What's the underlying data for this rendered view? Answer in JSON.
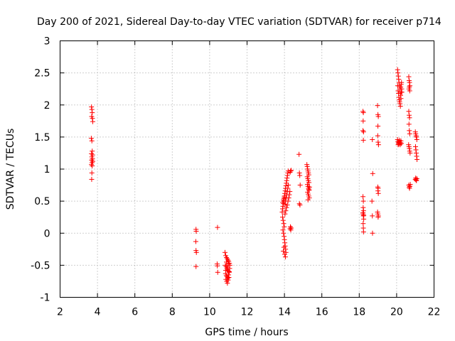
{
  "chart_data": {
    "type": "scatter",
    "title": "Day 200 of 2021, Sidereal Day-to-day VTEC variation (SDTVAR) for receiver p714",
    "xlabel": "GPS time / hours",
    "ylabel": "SDTVAR / TECUs",
    "xlim": [
      2,
      22
    ],
    "ylim": [
      -1,
      3
    ],
    "xticks": [
      "2",
      "4",
      "6",
      "8",
      "10",
      "12",
      "14",
      "16",
      "18",
      "20",
      "22"
    ],
    "yticks": [
      "-1",
      "-0.5",
      "0",
      "0.5",
      "1",
      "1.5",
      "2",
      "2.5",
      "3"
    ],
    "grid": true,
    "marker": "plus",
    "color": "#ff0000",
    "series": [
      {
        "name": "SDTVAR",
        "points": [
          [
            3.68,
            1.97
          ],
          [
            3.7,
            1.93
          ],
          [
            3.72,
            1.88
          ],
          [
            3.69,
            1.82
          ],
          [
            3.73,
            1.79
          ],
          [
            3.75,
            1.74
          ],
          [
            3.67,
            1.48
          ],
          [
            3.7,
            1.44
          ],
          [
            3.72,
            1.28
          ],
          [
            3.68,
            1.24
          ],
          [
            3.74,
            1.22
          ],
          [
            3.7,
            1.19
          ],
          [
            3.73,
            1.16
          ],
          [
            3.69,
            1.14
          ],
          [
            3.75,
            1.12
          ],
          [
            3.71,
            1.1
          ],
          [
            3.68,
            1.07
          ],
          [
            3.72,
            1.05
          ],
          [
            3.7,
            0.94
          ],
          [
            3.69,
            0.84
          ],
          [
            9.27,
            0.06
          ],
          [
            9.28,
            0.03
          ],
          [
            9.26,
            -0.13
          ],
          [
            9.27,
            -0.27
          ],
          [
            9.29,
            -0.3
          ],
          [
            9.27,
            -0.52
          ],
          [
            10.42,
            0.09
          ],
          [
            10.4,
            -0.48
          ],
          [
            10.41,
            -0.51
          ],
          [
            10.43,
            -0.61
          ],
          [
            10.82,
            -0.3
          ],
          [
            10.86,
            -0.35
          ],
          [
            10.9,
            -0.38
          ],
          [
            10.94,
            -0.4
          ],
          [
            10.98,
            -0.42
          ],
          [
            11.02,
            -0.44
          ],
          [
            11.06,
            -0.47
          ],
          [
            10.84,
            -0.5
          ],
          [
            10.88,
            -0.52
          ],
          [
            10.92,
            -0.55
          ],
          [
            10.96,
            -0.57
          ],
          [
            11.0,
            -0.59
          ],
          [
            11.04,
            -0.61
          ],
          [
            11.08,
            -0.5
          ],
          [
            10.85,
            -0.63
          ],
          [
            10.89,
            -0.66
          ],
          [
            10.93,
            -0.68
          ],
          [
            10.97,
            -0.7
          ],
          [
            11.01,
            -0.65
          ],
          [
            11.05,
            -0.6
          ],
          [
            10.87,
            -0.72
          ],
          [
            10.91,
            -0.75
          ],
          [
            10.95,
            -0.78
          ],
          [
            10.99,
            -0.73
          ],
          [
            11.03,
            -0.69
          ],
          [
            10.9,
            -0.45
          ],
          [
            10.95,
            -0.53
          ],
          [
            11.0,
            -0.48
          ],
          [
            10.86,
            -0.58
          ],
          [
            11.07,
            -0.55
          ],
          [
            13.88,
            0.33
          ],
          [
            13.9,
            0.38
          ],
          [
            13.92,
            0.42
          ],
          [
            13.94,
            0.46
          ],
          [
            13.96,
            0.5
          ],
          [
            13.98,
            0.54
          ],
          [
            14.0,
            0.58
          ],
          [
            14.02,
            0.62
          ],
          [
            14.04,
            0.66
          ],
          [
            14.06,
            0.7
          ],
          [
            14.08,
            0.74
          ],
          [
            14.1,
            0.78
          ],
          [
            14.12,
            0.82
          ],
          [
            14.14,
            0.86
          ],
          [
            14.16,
            0.9
          ],
          [
            14.18,
            0.94
          ],
          [
            14.2,
            0.97
          ],
          [
            13.9,
            0.25
          ],
          [
            13.93,
            0.2
          ],
          [
            13.96,
            0.15
          ],
          [
            13.99,
            0.1
          ],
          [
            13.92,
            0.05
          ],
          [
            13.95,
            0.0
          ],
          [
            13.98,
            -0.05
          ],
          [
            14.0,
            -0.1
          ],
          [
            14.02,
            -0.15
          ],
          [
            14.04,
            -0.2
          ],
          [
            14.06,
            -0.25
          ],
          [
            14.08,
            -0.3
          ],
          [
            13.94,
            -0.28
          ],
          [
            13.97,
            -0.22
          ],
          [
            14.01,
            -0.33
          ],
          [
            14.05,
            -0.37
          ],
          [
            14.03,
            0.45
          ],
          [
            14.06,
            0.5
          ],
          [
            14.09,
            0.55
          ],
          [
            14.12,
            0.6
          ],
          [
            14.15,
            0.65
          ],
          [
            14.18,
            0.7
          ],
          [
            14.21,
            0.75
          ],
          [
            13.91,
            0.48
          ],
          [
            13.95,
            0.52
          ],
          [
            13.99,
            0.56
          ],
          [
            14.03,
            0.3
          ],
          [
            14.07,
            0.35
          ],
          [
            14.11,
            0.4
          ],
          [
            14.15,
            0.44
          ],
          [
            14.19,
            0.5
          ],
          [
            14.23,
            0.55
          ],
          [
            14.26,
            0.6
          ],
          [
            14.29,
            0.65
          ],
          [
            14.3,
            0.95
          ],
          [
            14.33,
            0.97
          ],
          [
            14.36,
            0.98
          ],
          [
            14.3,
            0.07
          ],
          [
            14.32,
            0.1
          ],
          [
            14.34,
            0.05
          ],
          [
            14.36,
            0.08
          ],
          [
            14.78,
            1.23
          ],
          [
            14.8,
            0.94
          ],
          [
            14.82,
            0.9
          ],
          [
            14.84,
            0.75
          ],
          [
            14.8,
            0.46
          ],
          [
            14.83,
            0.44
          ],
          [
            15.2,
            1.07
          ],
          [
            15.22,
            1.04
          ],
          [
            15.24,
            1.0
          ],
          [
            15.26,
            0.97
          ],
          [
            15.28,
            0.94
          ],
          [
            15.3,
            0.91
          ],
          [
            15.22,
            0.88
          ],
          [
            15.25,
            0.85
          ],
          [
            15.28,
            0.82
          ],
          [
            15.31,
            0.79
          ],
          [
            15.23,
            0.76
          ],
          [
            15.26,
            0.73
          ],
          [
            15.29,
            0.7
          ],
          [
            15.32,
            0.67
          ],
          [
            15.24,
            0.64
          ],
          [
            15.27,
            0.61
          ],
          [
            15.3,
            0.58
          ],
          [
            15.33,
            0.55
          ],
          [
            15.26,
            0.52
          ],
          [
            15.3,
            0.68
          ],
          [
            15.34,
            0.72
          ],
          [
            18.2,
            1.9
          ],
          [
            18.22,
            1.88
          ],
          [
            18.21,
            1.75
          ],
          [
            18.2,
            1.6
          ],
          [
            18.23,
            1.58
          ],
          [
            18.22,
            1.45
          ],
          [
            18.2,
            0.57
          ],
          [
            18.22,
            0.5
          ],
          [
            18.21,
            0.4
          ],
          [
            18.23,
            0.35
          ],
          [
            18.2,
            0.3
          ],
          [
            18.22,
            0.27
          ],
          [
            18.24,
            0.22
          ],
          [
            18.21,
            0.15
          ],
          [
            18.22,
            0.08
          ],
          [
            18.23,
            0.02
          ],
          [
            18.2,
            0.32
          ],
          [
            18.24,
            0.28
          ],
          [
            18.7,
            1.46
          ],
          [
            18.72,
            0.93
          ],
          [
            18.68,
            0.5
          ],
          [
            18.7,
            0.27
          ],
          [
            18.71,
            0.0
          ],
          [
            18.98,
            1.99
          ],
          [
            19.0,
            1.85
          ],
          [
            19.02,
            1.82
          ],
          [
            19.0,
            1.67
          ],
          [
            18.99,
            1.52
          ],
          [
            19.01,
            1.42
          ],
          [
            19.03,
            1.38
          ],
          [
            18.99,
            0.72
          ],
          [
            19.01,
            0.7
          ],
          [
            19.0,
            0.66
          ],
          [
            19.02,
            0.62
          ],
          [
            18.98,
            0.33
          ],
          [
            19.0,
            0.3
          ],
          [
            19.02,
            0.27
          ],
          [
            19.01,
            0.25
          ],
          [
            20.05,
            2.55
          ],
          [
            20.07,
            2.5
          ],
          [
            20.09,
            2.45
          ],
          [
            20.11,
            2.4
          ],
          [
            20.13,
            2.35
          ],
          [
            20.15,
            2.3
          ],
          [
            20.17,
            2.25
          ],
          [
            20.19,
            2.2
          ],
          [
            20.21,
            2.15
          ],
          [
            20.23,
            2.1
          ],
          [
            20.25,
            2.2
          ],
          [
            20.27,
            2.25
          ],
          [
            20.06,
            2.3
          ],
          [
            20.08,
            2.22
          ],
          [
            20.1,
            2.18
          ],
          [
            20.12,
            2.12
          ],
          [
            20.14,
            2.08
          ],
          [
            20.16,
            2.05
          ],
          [
            20.18,
            2.02
          ],
          [
            20.2,
            1.98
          ],
          [
            20.22,
            2.28
          ],
          [
            20.24,
            2.32
          ],
          [
            20.26,
            2.35
          ],
          [
            20.28,
            2.2
          ],
          [
            20.05,
            1.46
          ],
          [
            20.07,
            1.43
          ],
          [
            20.09,
            1.41
          ],
          [
            20.11,
            1.39
          ],
          [
            20.13,
            1.42
          ],
          [
            20.15,
            1.45
          ],
          [
            20.17,
            1.4
          ],
          [
            20.19,
            1.38
          ],
          [
            20.21,
            1.41
          ],
          [
            20.23,
            1.44
          ],
          [
            20.25,
            1.4
          ],
          [
            20.08,
            1.38
          ],
          [
            20.65,
            2.44
          ],
          [
            20.67,
            2.38
          ],
          [
            20.69,
            2.35
          ],
          [
            20.71,
            2.3
          ],
          [
            20.66,
            2.25
          ],
          [
            20.68,
            2.28
          ],
          [
            20.7,
            2.22
          ],
          [
            20.65,
            1.9
          ],
          [
            20.67,
            1.84
          ],
          [
            20.69,
            1.8
          ],
          [
            20.66,
            1.7
          ],
          [
            20.68,
            1.6
          ],
          [
            20.7,
            1.55
          ],
          [
            20.64,
            1.38
          ],
          [
            20.66,
            1.35
          ],
          [
            20.68,
            1.32
          ],
          [
            20.7,
            1.28
          ],
          [
            20.72,
            1.25
          ],
          [
            20.65,
            0.75
          ],
          [
            20.67,
            0.72
          ],
          [
            20.69,
            0.7
          ],
          [
            20.71,
            0.73
          ],
          [
            20.73,
            0.76
          ],
          [
            21.0,
            1.58
          ],
          [
            21.02,
            1.55
          ],
          [
            21.04,
            1.52
          ],
          [
            21.06,
            1.5
          ],
          [
            21.08,
            1.46
          ],
          [
            21.01,
            1.35
          ],
          [
            21.03,
            1.3
          ],
          [
            21.05,
            1.25
          ],
          [
            21.07,
            1.2
          ],
          [
            21.09,
            1.15
          ],
          [
            21.02,
            0.86
          ],
          [
            21.04,
            0.83
          ],
          [
            21.06,
            0.82
          ],
          [
            21.08,
            0.85
          ],
          [
            21.0,
            0.84
          ]
        ]
      }
    ]
  }
}
